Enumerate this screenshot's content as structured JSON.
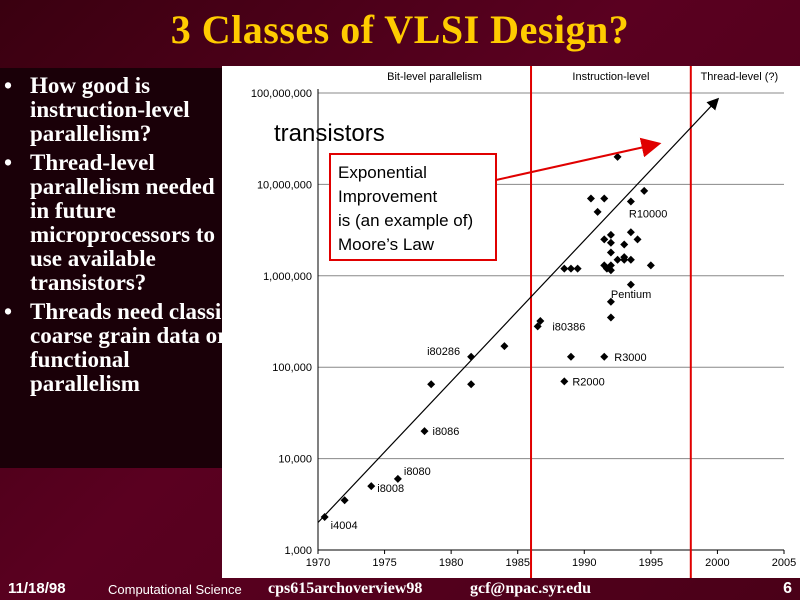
{
  "slide": {
    "title": "3 Classes of VLSI Design?",
    "bullets": [
      "How good is instruction-level parallelism?",
      "Thread-level parallelism needed in future microprocessors to use available transistors?",
      "Threads need classic coarse grain data or functional parallelism"
    ]
  },
  "footer": {
    "date": "11/18/98",
    "org": "Computational Science",
    "file": "cps615archoverview98",
    "email": "gcf@npac.syr.edu",
    "page": "6"
  },
  "chart_data": {
    "type": "scatter",
    "title": "",
    "ylabel": "transistors",
    "xlabel": "",
    "xlim": [
      1970,
      2005
    ],
    "ylim": [
      1000,
      100000000
    ],
    "yscale": "log",
    "x_ticks": [
      "1970",
      "1975",
      "1980",
      "1985",
      "1990",
      "1995",
      "2000",
      "2005"
    ],
    "y_ticks": [
      "1,000",
      "10,000",
      "100,000",
      "1,000,000",
      "10,000,000",
      "100,000,000"
    ],
    "regions": [
      {
        "label": "Bit-level parallelism",
        "x_end": 1986
      },
      {
        "label": "Instruction-level",
        "x_end": 1998
      },
      {
        "label": "Thread-level (?)"
      }
    ],
    "annotation": "Exponential Improvement is (an example of) Moore’s Law",
    "trend_line": {
      "from": [
        1970,
        2000
      ],
      "to": [
        2000,
        85000000
      ]
    },
    "series": [
      {
        "points": [
          [
            1970.5,
            2300
          ],
          [
            1972,
            3500
          ],
          [
            1974,
            5000
          ],
          [
            1976,
            6000
          ],
          [
            1978,
            20000
          ],
          [
            1978.5,
            65000
          ],
          [
            1981.5,
            130000
          ],
          [
            1981.5,
            65000
          ],
          [
            1984,
            170000
          ],
          [
            1986.5,
            280000
          ],
          [
            1986.7,
            320000
          ],
          [
            1988.5,
            1200000
          ],
          [
            1989,
            1200000
          ],
          [
            1989.5,
            1200000
          ],
          [
            1989,
            130000
          ],
          [
            1988.5,
            70000
          ],
          [
            1990.5,
            7000000
          ],
          [
            1991,
            5000000
          ],
          [
            1991.5,
            7000000
          ],
          [
            1991.5,
            2500000
          ],
          [
            1991.5,
            1300000
          ],
          [
            1991.7,
            1200000
          ],
          [
            1992,
            2800000
          ],
          [
            1992,
            2300000
          ],
          [
            1992,
            1800000
          ],
          [
            1992,
            1300000
          ],
          [
            1992,
            1150000
          ],
          [
            1992,
            520000
          ],
          [
            1992.5,
            1500000
          ],
          [
            1992,
            350000
          ],
          [
            1991.5,
            130000
          ],
          [
            1993,
            1500000
          ],
          [
            1993,
            2200000
          ],
          [
            1993.5,
            3000000
          ],
          [
            1993.5,
            6500000
          ],
          [
            1993.5,
            1500000
          ],
          [
            1993.5,
            800000
          ],
          [
            1994,
            2500000
          ],
          [
            1994.5,
            8500000
          ],
          [
            1995,
            1300000
          ],
          [
            1992.5,
            20000000
          ],
          [
            1993,
            1600000
          ]
        ]
      }
    ],
    "point_labels": [
      {
        "label": "i4004",
        "x": 1970.5,
        "y": 2300
      },
      {
        "label": "i8008",
        "x": 1974,
        "y": 5000
      },
      {
        "label": "i8080",
        "x": 1976,
        "y": 6000
      },
      {
        "label": "i8086",
        "x": 1978,
        "y": 20000
      },
      {
        "label": "i80286",
        "x": 1981.5,
        "y": 130000
      },
      {
        "label": "i80386",
        "x": 1986.7,
        "y": 280000
      },
      {
        "label": "R2000",
        "x": 1988.5,
        "y": 70000
      },
      {
        "label": "R3000",
        "x": 1991.5,
        "y": 130000
      },
      {
        "label": "Pentium",
        "x": 1992,
        "y": 520000
      },
      {
        "label": "R10000",
        "x": 1993.5,
        "y": 6500000
      }
    ]
  }
}
